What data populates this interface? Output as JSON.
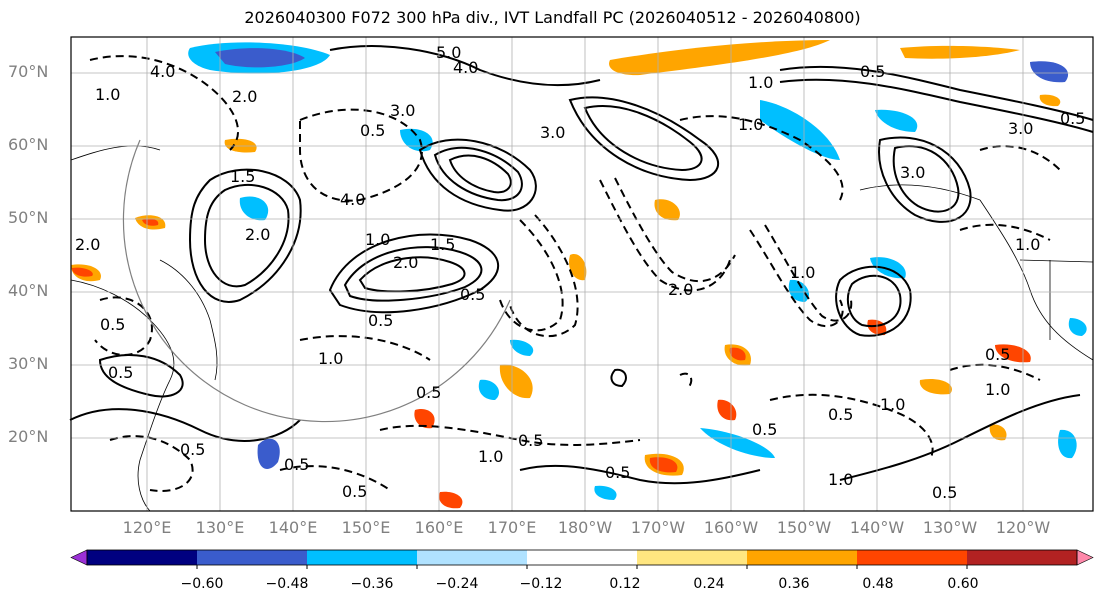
{
  "title": "2026040300 F072 300 hPa div., IVT Landfall PC (2026040512 - 2026040800)",
  "lat_labels": [
    "70°N",
    "60°N",
    "50°N",
    "40°N",
    "30°N",
    "20°N"
  ],
  "lon_labels": [
    "120°E",
    "130°E",
    "140°E",
    "150°E",
    "160°E",
    "170°E",
    "180°W",
    "170°W",
    "160°W",
    "150°W",
    "140°W",
    "130°W",
    "120°W"
  ],
  "colorbar": {
    "ticks": [
      "−0.60",
      "−0.48",
      "−0.36",
      "−0.24",
      "−0.12",
      "0.12",
      "0.24",
      "0.36",
      "0.48",
      "0.60"
    ],
    "colors": [
      "#9b30d6",
      "#000080",
      "#3a5ccc",
      "#00bfff",
      "#b0e2ff",
      "#ffffff",
      "#ffe680",
      "#ffa500",
      "#ff4500",
      "#b22222",
      "#ff88aa"
    ]
  },
  "contour_labels": [
    "5.0",
    "4.0",
    "4.0",
    "0.5",
    "3.0",
    "3.0",
    "1.0",
    "1.0",
    "0.5",
    "0.5",
    "2.0",
    "2.0",
    "1.5",
    "1.5",
    "1.0",
    "4.0",
    "3.0",
    "2.0",
    "1.0",
    "0.5",
    "1.0",
    "2.0",
    "0.5",
    "3.0",
    "0.5",
    "2.0",
    "1.0",
    "0.5",
    "0.5",
    "0.5",
    "0.5",
    "1.0",
    "0.5",
    "1.0",
    "0.5",
    "1.0",
    "0.5",
    "1.0",
    "0.5",
    "0.5",
    "0.5",
    "1.0",
    "0.5"
  ],
  "colors": {
    "positive": "#ffa500",
    "positive_core": "#ff4500",
    "negative": "#00bfff",
    "negative_core": "#3a5ccc",
    "grid": "#b0b0b0",
    "circle": "#808080"
  }
}
